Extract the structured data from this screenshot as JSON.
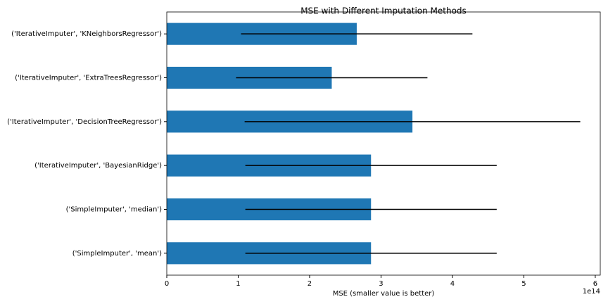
{
  "chart_data": {
    "type": "barh",
    "title": "MSE with Different Imputation Methods",
    "x_label": "MSE (smaller value is better)",
    "x_offset_label": "1e14",
    "categories": [
      "('SimpleImputer', 'mean')",
      "('SimpleImputer', 'median')",
      "('IterativeImputer', 'BayesianRidge')",
      "('IterativeImputer', 'DecisionTreeRegressor')",
      "('IterativeImputer', 'ExtraTreesRegressor')",
      "('IterativeImputer', 'KNeighborsRegressor')"
    ],
    "values": [
      2.86,
      2.86,
      2.86,
      3.44,
      2.31,
      2.66
    ],
    "errors": [
      1.76,
      1.76,
      1.76,
      2.35,
      1.34,
      1.62
    ],
    "color": "#1f77b4",
    "error_color": "#000000",
    "xlim": [
      0,
      6.07
    ],
    "xticks": [
      0,
      1,
      2,
      3,
      4,
      5,
      6
    ]
  }
}
